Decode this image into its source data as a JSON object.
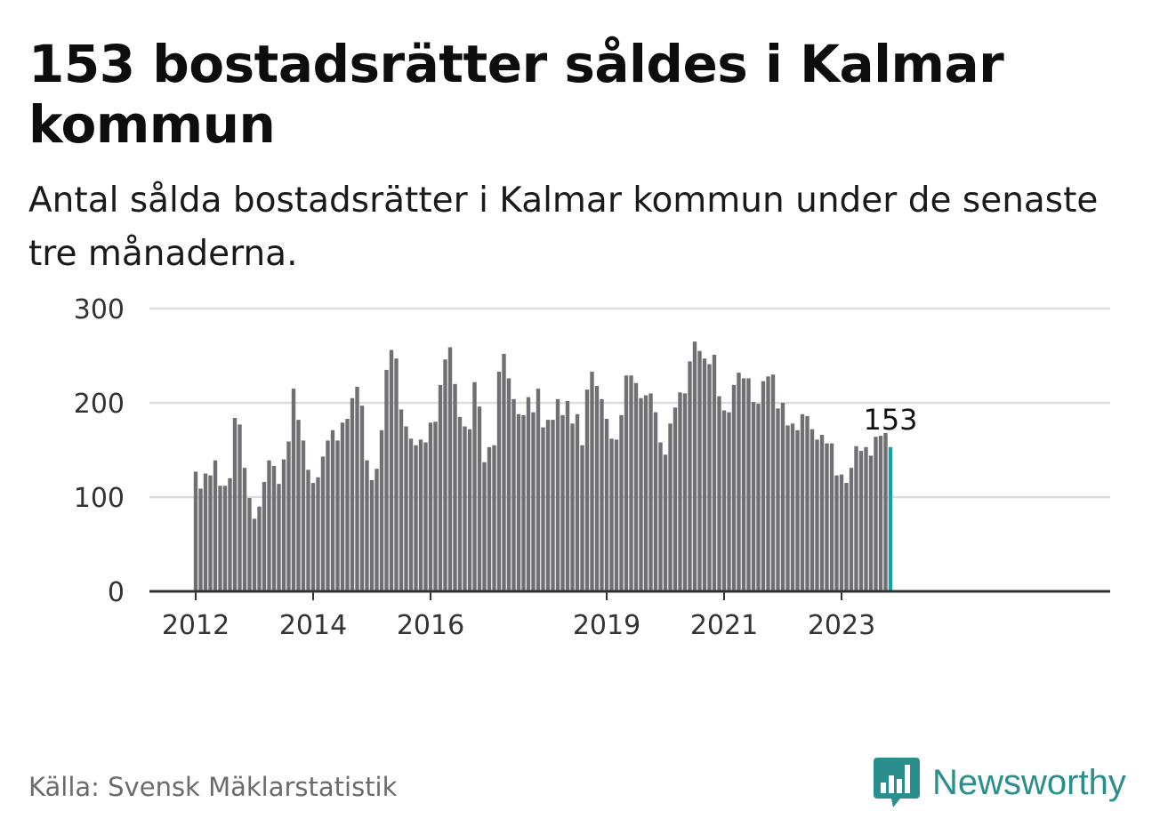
{
  "header": {
    "title": "153 bostadsrätter såldes i Kalmar kommun",
    "subtitle": "Antal sålda bostadsrätter i Kalmar kommun under de senaste tre månaderna."
  },
  "footer": {
    "source": "Källa: Svensk Mäklarstatistik",
    "brand": "Newsworthy",
    "brand_icon": "bar-chart-speech-bubble-icon"
  },
  "colors": {
    "bar": "#707074",
    "highlight": "#13a3a1",
    "grid": "#dddddd",
    "axis": "#333333",
    "brand": "#2a8f8c"
  },
  "chart_data": {
    "type": "bar",
    "title": "153 bostadsrätter såldes i Kalmar kommun",
    "xlabel": "",
    "ylabel": "",
    "ylim": [
      0,
      300
    ],
    "yticks": [
      0,
      100,
      200,
      300
    ],
    "grid": true,
    "x_tick_labels": [
      {
        "label": "2012",
        "index": 0
      },
      {
        "label": "2014",
        "index": 24
      },
      {
        "label": "2016",
        "index": 48
      },
      {
        "label": "2019",
        "index": 84
      },
      {
        "label": "2021",
        "index": 108
      },
      {
        "label": "2023",
        "index": 132
      }
    ],
    "highlight_label": "153",
    "values": [
      127,
      109,
      125,
      123,
      139,
      112,
      112,
      120,
      184,
      177,
      131,
      99,
      77,
      90,
      116,
      139,
      133,
      114,
      140,
      159,
      215,
      182,
      160,
      129,
      115,
      121,
      143,
      160,
      171,
      160,
      179,
      183,
      205,
      217,
      197,
      139,
      118,
      130,
      171,
      235,
      256,
      247,
      193,
      175,
      162,
      155,
      161,
      158,
      179,
      180,
      219,
      246,
      259,
      220,
      185,
      175,
      172,
      222,
      196,
      137,
      153,
      155,
      233,
      252,
      226,
      204,
      188,
      187,
      206,
      190,
      215,
      174,
      182,
      182,
      204,
      187,
      202,
      178,
      188,
      155,
      214,
      233,
      218,
      204,
      183,
      162,
      161,
      187,
      229,
      229,
      221,
      205,
      208,
      210,
      190,
      158,
      145,
      178,
      195,
      211,
      210,
      244,
      265,
      255,
      247,
      241,
      251,
      207,
      192,
      190,
      219,
      232,
      226,
      226,
      201,
      199,
      223,
      228,
      230,
      194,
      200,
      176,
      178,
      171,
      188,
      186,
      172,
      161,
      166,
      157,
      157,
      123,
      124,
      115,
      131,
      154,
      149,
      153,
      144,
      164,
      165,
      168,
      153
    ]
  }
}
